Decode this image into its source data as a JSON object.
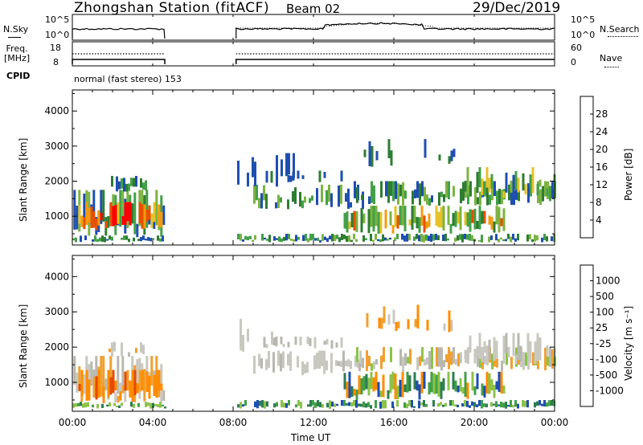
{
  "header": {
    "title": "Zhongshan Station (fitACF)",
    "beam": "Beam 02",
    "date": "29/Dec/2019"
  },
  "strip_labels": {
    "nsky": "N.Sky",
    "nsky_tick_top": "10^5",
    "nsky_tick_bottom": "10^0",
    "nsearch": "N.Search",
    "nsearch_tick_top": "10^5",
    "nsearch_tick_bottom": "10^0",
    "freq_line1": "Freq.",
    "freq_line2": "[MHz]",
    "freq_tick_top": "18",
    "freq_tick_bottom": "8",
    "nave": "Nave",
    "nave_tick_top": "60",
    "nave_tick_bottom": "0",
    "cpid": "CPID",
    "cpid_text": "normal (fast stereo) 153"
  },
  "colors": {
    "power": [
      "#0000ff",
      "#1f4fb0",
      "#2e7d32",
      "#43a047",
      "#7cb342",
      "#e6c229",
      "#f39c12",
      "#e65100",
      "#ff0000"
    ],
    "velocity": [
      "#ff0000",
      "#e64a00",
      "#ff8c00",
      "#f0a030",
      "#c8c8c0",
      "#b8b8b0",
      "#8bc34a",
      "#43a047",
      "#2e7d52",
      "#1f4fb0",
      "#1a3fd0"
    ]
  },
  "chart_data": [
    {
      "type": "heatmap",
      "name": "power",
      "xlabel": "",
      "ylabel": "Slant Range [km]",
      "x_ticks_hours": [
        0,
        4,
        8,
        12,
        16,
        20,
        24
      ],
      "x_tick_labels": [
        "00:00",
        "04:00",
        "08:00",
        "12:00",
        "16:00",
        "20:00",
        "00:00"
      ],
      "xlim_hours": [
        0,
        24
      ],
      "ylim_km": [
        180,
        4600
      ],
      "y_ticks": [
        1000,
        2000,
        3000,
        4000
      ],
      "colorbar_label": "Power [dB]",
      "colorbar_ticks": [
        "4",
        "8",
        "12",
        "16",
        "20",
        "24",
        "28"
      ],
      "data_gap_hours": [
        4.6,
        8.15
      ]
    },
    {
      "type": "heatmap",
      "name": "velocity",
      "xlabel": "Time UT",
      "ylabel": "Slant Range [km]",
      "x_ticks_hours": [
        0,
        4,
        8,
        12,
        16,
        20,
        24
      ],
      "x_tick_labels": [
        "00:00",
        "04:00",
        "08:00",
        "12:00",
        "16:00",
        "20:00",
        "00:00"
      ],
      "xlim_hours": [
        0,
        24
      ],
      "ylim_km": [
        180,
        4600
      ],
      "y_ticks": [
        1000,
        2000,
        3000,
        4000
      ],
      "colorbar_label": "Velocity [m s⁻¹]",
      "colorbar_ticks": [
        "1000",
        "500",
        "100",
        "25",
        "-25",
        "-100",
        "-500",
        "-1000"
      ],
      "data_gap_hours": [
        4.6,
        8.15
      ]
    }
  ]
}
